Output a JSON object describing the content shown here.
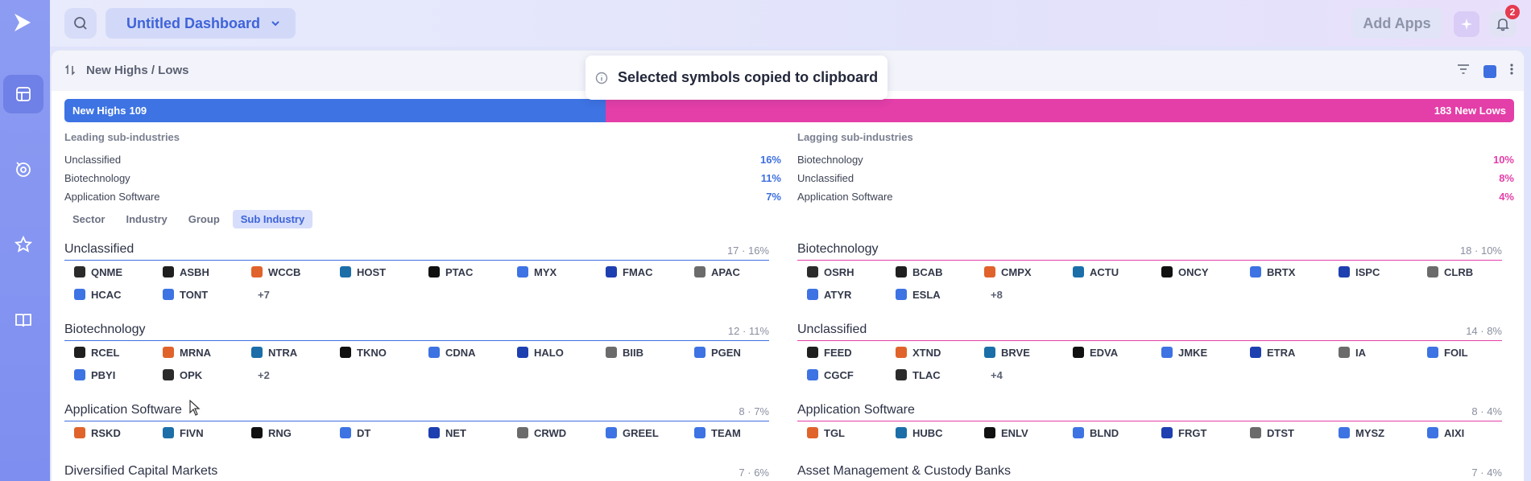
{
  "topbar": {
    "dashboard_title": "Untitled Dashboard",
    "add_apps_label": "Add Apps",
    "notification_count": "2"
  },
  "panel": {
    "title": "New Highs / Lows"
  },
  "toast": {
    "message": "Selected symbols copied to clipboard"
  },
  "highs_lows_bar": {
    "high_label": "New Highs",
    "high_count": "109",
    "low_count": "183",
    "low_label": "New Lows"
  },
  "leading": {
    "caption": "Leading sub-industries",
    "rows": [
      {
        "name": "Unclassified",
        "pct": "16%"
      },
      {
        "name": "Biotechnology",
        "pct": "11%"
      },
      {
        "name": "Application Software",
        "pct": "7%"
      }
    ]
  },
  "lagging": {
    "caption": "Lagging sub-industries",
    "rows": [
      {
        "name": "Biotechnology",
        "pct": "10%"
      },
      {
        "name": "Unclassified",
        "pct": "8%"
      },
      {
        "name": "Application Software",
        "pct": "4%"
      }
    ]
  },
  "tabs": [
    "Sector",
    "Industry",
    "Group",
    "Sub Industry"
  ],
  "active_tab": "Sub Industry",
  "highs_groups": [
    {
      "name": "Unclassified",
      "meta": "17 · 16%",
      "more": "+7",
      "symbols": [
        "QNME",
        "ASBH",
        "WCCB",
        "HOST",
        "PTAC",
        "MYX",
        "FMAC",
        "APAC",
        "HCAC",
        "TONT"
      ]
    },
    {
      "name": "Biotechnology",
      "meta": "12 · 11%",
      "more": "+2",
      "symbols": [
        "RCEL",
        "MRNA",
        "NTRA",
        "TKNO",
        "CDNA",
        "HALO",
        "BIIB",
        "PGEN",
        "PBYI",
        "OPK"
      ]
    },
    {
      "name": "Application Software",
      "meta": "8 · 7%",
      "more": "",
      "symbols": [
        "RSKD",
        "FIVN",
        "RNG",
        "DT",
        "NET",
        "CRWD",
        "GREEL",
        "TEAM"
      ]
    },
    {
      "name": "Diversified Capital Markets",
      "meta": "7 · 6%",
      "more": "",
      "symbols": []
    }
  ],
  "lows_groups": [
    {
      "name": "Biotechnology",
      "meta": "18 · 10%",
      "more": "+8",
      "symbols": [
        "OSRH",
        "BCAB",
        "CMPX",
        "ACTU",
        "ONCY",
        "BRTX",
        "ISPC",
        "CLRB",
        "ATYR",
        "ESLA"
      ]
    },
    {
      "name": "Unclassified",
      "meta": "14 · 8%",
      "more": "+4",
      "symbols": [
        "FEED",
        "XTND",
        "BRVE",
        "EDVA",
        "JMKE",
        "ETRA",
        "IA",
        "FOIL",
        "CGCF",
        "TLAC"
      ]
    },
    {
      "name": "Application Software",
      "meta": "8 · 4%",
      "more": "",
      "symbols": [
        "TGL",
        "HUBC",
        "ENLV",
        "BLND",
        "FRGT",
        "DTST",
        "MYSZ",
        "AIXI"
      ]
    },
    {
      "name": "Asset Management & Custody Banks",
      "meta": "7 · 4%",
      "more": "",
      "symbols": []
    }
  ],
  "colors": {
    "highs": "#3d73e3",
    "lows": "#e43ea8",
    "icon_palette": [
      "#2b2b2b",
      "#1f1f1f",
      "#e0632b",
      "#1b6ea8",
      "#111111",
      "#3d73e3",
      "#1d3fb0",
      "#6b6b6b",
      "#3d73e3",
      "#3d73e3"
    ]
  }
}
